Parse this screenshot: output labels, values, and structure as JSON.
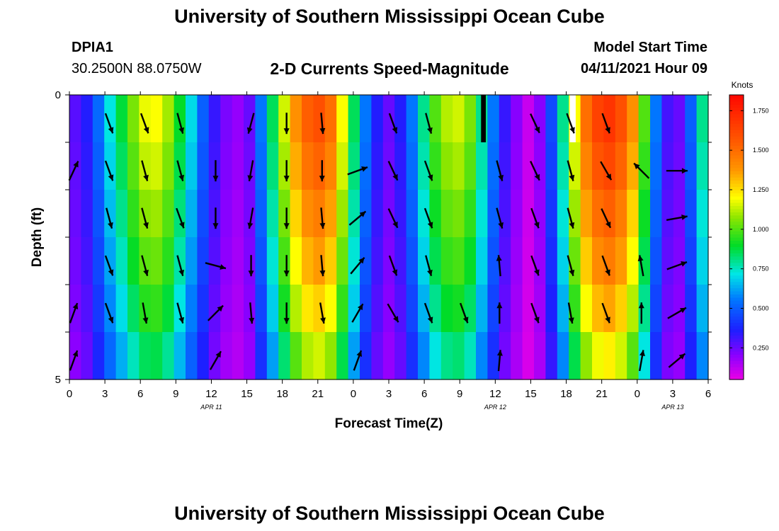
{
  "title_top": "University of Southern Mississippi Ocean Cube",
  "title_bottom": "University of Southern Mississippi Ocean Cube",
  "station": {
    "id": "DPIA1",
    "coords": "30.2500N  88.0750W"
  },
  "model": {
    "label": "Model Start Time",
    "value": "04/11/2021 Hour 09"
  },
  "colors": {
    "arrow": "#000000"
  },
  "chart_data": {
    "type": "heatmap",
    "title": "2-D Currents Speed-Magnitude",
    "xlabel": "Forecast Time(Z)",
    "ylabel": "Depth (ft)",
    "x_ticks": [
      "0",
      "3",
      "6",
      "9",
      "12",
      "15",
      "18",
      "21",
      "0",
      "3",
      "6",
      "9",
      "12",
      "15",
      "18",
      "21",
      "0",
      "3",
      "6"
    ],
    "date_labels": [
      {
        "label": "APR 11",
        "at_hour": 12
      },
      {
        "label": "APR 12",
        "at_hour": 36
      },
      {
        "label": "APR 13",
        "at_hour": 51
      }
    ],
    "y_ticks": [
      "0",
      "5"
    ],
    "ylim": [
      0,
      5
    ],
    "xlim_hours": [
      0,
      54
    ],
    "colorbar": {
      "label": "Knots",
      "min": 0.05,
      "max": 1.85,
      "ticks": [
        "0.250",
        "0.500",
        "0.750",
        "1.000",
        "1.250",
        "1.500",
        "1.750"
      ],
      "tick_values": [
        0.25,
        0.5,
        0.75,
        1.0,
        1.25,
        1.5,
        1.75
      ]
    },
    "speed_profile_surface": [
      0.27,
      0.35,
      0.52,
      0.72,
      0.88,
      1.05,
      1.18,
      1.2,
      1.1,
      0.9,
      0.7,
      0.5,
      0.32,
      0.22,
      0.18,
      0.25,
      0.55,
      0.85,
      1.15,
      1.4,
      1.55,
      1.6,
      1.5,
      1.2,
      0.85,
      0.55,
      0.35,
      0.25,
      0.35,
      0.55,
      0.8,
      1.0,
      1.12,
      1.15,
      1.05,
      0.8,
      0.55,
      0.32,
      0.2,
      0.1,
      0.2,
      0.45,
      0.8,
      1.2,
      1.5,
      1.65,
      1.7,
      1.6,
      1.4,
      1.0,
      0.55,
      0.3,
      0.25,
      0.5,
      0.8
    ],
    "depth_factors": [
      1.0,
      0.96,
      0.91,
      0.86,
      0.8,
      0.72
    ],
    "arrow_columns_hours": [
      0,
      3,
      6,
      9,
      12,
      15,
      18,
      21,
      24,
      27,
      30,
      33,
      36,
      39,
      42,
      45,
      48,
      51
    ],
    "arrow_angles_deg": [
      [
        null,
        160,
        160,
        165,
        null,
        -165,
        180,
        175,
        null,
        160,
        165,
        null,
        null,
        155,
        160,
        160,
        null,
        null
      ],
      [
        25,
        160,
        165,
        165,
        180,
        -170,
        180,
        180,
        70,
        155,
        160,
        null,
        165,
        155,
        165,
        150,
        -45,
        90
      ],
      [
        null,
        165,
        165,
        160,
        180,
        -170,
        180,
        175,
        50,
        155,
        160,
        null,
        165,
        160,
        165,
        155,
        null,
        80
      ],
      [
        null,
        160,
        165,
        165,
        105,
        180,
        180,
        175,
        40,
        160,
        165,
        null,
        -5,
        160,
        165,
        160,
        -10,
        70
      ],
      [
        20,
        160,
        170,
        165,
        45,
        175,
        180,
        170,
        30,
        150,
        160,
        160,
        0,
        160,
        170,
        160,
        0,
        60
      ],
      [
        20,
        null,
        null,
        null,
        30,
        null,
        null,
        null,
        20,
        null,
        null,
        null,
        5,
        null,
        null,
        null,
        10,
        50
      ]
    ],
    "missing_cells": [
      {
        "hour_start": 34.8,
        "hour_end": 35.2,
        "color": "#000000"
      },
      {
        "hour_start": 42.3,
        "hour_end": 42.8,
        "color": "#ffffff"
      }
    ]
  }
}
